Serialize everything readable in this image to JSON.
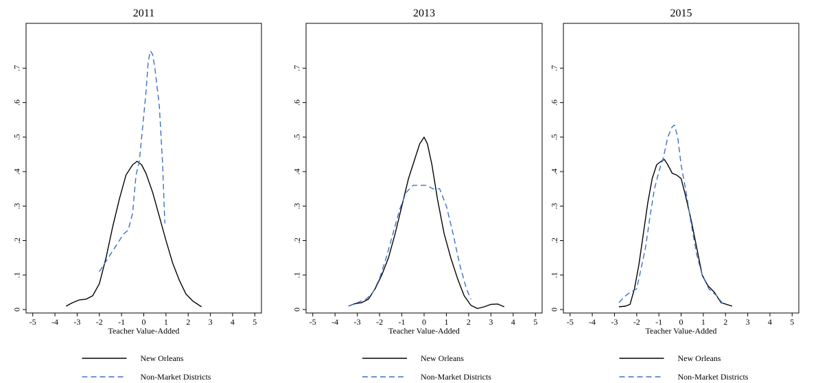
{
  "chart_data": [
    {
      "type": "line",
      "title": "2011",
      "xlabel": "Teacher Value-Added",
      "ylabel": "",
      "xlim": [
        -5.3,
        5.3
      ],
      "ylim": [
        -0.01,
        0.83
      ],
      "xticks": [
        -5,
        -4,
        -3,
        -2,
        -1,
        0,
        1,
        2,
        3,
        4,
        5
      ],
      "yticks": [
        0,
        0.1,
        0.2,
        0.3,
        0.4,
        0.5,
        0.6,
        0.7
      ],
      "ytick_labels": [
        "0",
        ".1",
        ".2",
        ".3",
        ".4",
        ".5",
        ".6",
        ".7"
      ],
      "grid": false,
      "legend": "below",
      "series": [
        {
          "name": "New Orleans",
          "style": "solid",
          "color": "#000000",
          "points": [
            [
              -3.5,
              0.01
            ],
            [
              -3.2,
              0.02
            ],
            [
              -2.9,
              0.028
            ],
            [
              -2.6,
              0.03
            ],
            [
              -2.3,
              0.04
            ],
            [
              -2.0,
              0.075
            ],
            [
              -1.7,
              0.15
            ],
            [
              -1.4,
              0.24
            ],
            [
              -1.1,
              0.32
            ],
            [
              -0.8,
              0.39
            ],
            [
              -0.5,
              0.42
            ],
            [
              -0.3,
              0.43
            ],
            [
              -0.1,
              0.42
            ],
            [
              0.1,
              0.395
            ],
            [
              0.4,
              0.34
            ],
            [
              0.7,
              0.27
            ],
            [
              1.0,
              0.2
            ],
            [
              1.3,
              0.135
            ],
            [
              1.6,
              0.085
            ],
            [
              1.9,
              0.045
            ],
            [
              2.2,
              0.025
            ],
            [
              2.6,
              0.008
            ]
          ]
        },
        {
          "name": "Non-Market Districts",
          "style": "dashed",
          "color": "#3a6fc7",
          "points": [
            [
              -2.0,
              0.11
            ],
            [
              -1.7,
              0.14
            ],
            [
              -1.4,
              0.17
            ],
            [
              -1.1,
              0.2
            ],
            [
              -0.9,
              0.22
            ],
            [
              -0.7,
              0.23
            ],
            [
              -0.5,
              0.28
            ],
            [
              -0.35,
              0.39
            ],
            [
              -0.2,
              0.43
            ],
            [
              -0.05,
              0.53
            ],
            [
              0.1,
              0.63
            ],
            [
              0.2,
              0.72
            ],
            [
              0.3,
              0.75
            ],
            [
              0.4,
              0.74
            ],
            [
              0.5,
              0.7
            ],
            [
              0.7,
              0.59
            ],
            [
              0.85,
              0.42
            ],
            [
              0.95,
              0.25
            ]
          ]
        }
      ]
    },
    {
      "type": "line",
      "title": "2013",
      "xlabel": "Teacher Value-Added",
      "ylabel": "",
      "xlim": [
        -5.3,
        5.3
      ],
      "ylim": [
        -0.01,
        0.83
      ],
      "xticks": [
        -5,
        -4,
        -3,
        -2,
        -1,
        0,
        1,
        2,
        3,
        4,
        5
      ],
      "yticks": [
        0,
        0.1,
        0.2,
        0.3,
        0.4,
        0.5,
        0.6,
        0.7
      ],
      "ytick_labels": [
        "0",
        ".1",
        ".2",
        ".3",
        ".4",
        ".5",
        ".6",
        ".7"
      ],
      "grid": false,
      "legend": "below",
      "series": [
        {
          "name": "New Orleans",
          "style": "solid",
          "color": "#000000",
          "points": [
            [
              -3.4,
              0.01
            ],
            [
              -3.1,
              0.017
            ],
            [
              -2.8,
              0.02
            ],
            [
              -2.5,
              0.03
            ],
            [
              -2.2,
              0.06
            ],
            [
              -1.9,
              0.1
            ],
            [
              -1.6,
              0.15
            ],
            [
              -1.3,
              0.22
            ],
            [
              -1.0,
              0.3
            ],
            [
              -0.7,
              0.38
            ],
            [
              -0.4,
              0.44
            ],
            [
              -0.2,
              0.48
            ],
            [
              0.0,
              0.5
            ],
            [
              0.15,
              0.48
            ],
            [
              0.35,
              0.42
            ],
            [
              0.6,
              0.32
            ],
            [
              0.9,
              0.22
            ],
            [
              1.2,
              0.15
            ],
            [
              1.5,
              0.09
            ],
            [
              1.8,
              0.04
            ],
            [
              2.1,
              0.012
            ],
            [
              2.4,
              0.003
            ],
            [
              2.7,
              0.008
            ],
            [
              3.0,
              0.015
            ],
            [
              3.3,
              0.016
            ],
            [
              3.6,
              0.008
            ]
          ]
        },
        {
          "name": "Non-Market Districts",
          "style": "dashed",
          "color": "#3a6fc7",
          "points": [
            [
              -3.4,
              0.01
            ],
            [
              -3.0,
              0.02
            ],
            [
              -2.6,
              0.03
            ],
            [
              -2.3,
              0.05
            ],
            [
              -2.0,
              0.09
            ],
            [
              -1.7,
              0.15
            ],
            [
              -1.4,
              0.22
            ],
            [
              -1.1,
              0.29
            ],
            [
              -0.8,
              0.34
            ],
            [
              -0.5,
              0.36
            ],
            [
              -0.2,
              0.36
            ],
            [
              0.1,
              0.36
            ],
            [
              0.4,
              0.35
            ],
            [
              0.7,
              0.35
            ],
            [
              1.0,
              0.3
            ],
            [
              1.3,
              0.22
            ],
            [
              1.6,
              0.13
            ],
            [
              1.9,
              0.06
            ],
            [
              2.1,
              0.03
            ]
          ]
        }
      ]
    },
    {
      "type": "line",
      "title": "2015",
      "xlabel": "Teacher Value-Added",
      "ylabel": "",
      "xlim": [
        -5.3,
        5.3
      ],
      "ylim": [
        -0.01,
        0.83
      ],
      "xticks": [
        -5,
        -4,
        -3,
        -2,
        -1,
        0,
        1,
        2,
        3,
        4,
        5
      ],
      "yticks": [
        0,
        0.1,
        0.2,
        0.3,
        0.4,
        0.5,
        0.6,
        0.7
      ],
      "ytick_labels": [
        "0",
        ".1",
        ".2",
        ".3",
        ".4",
        ".5",
        ".6",
        ".7"
      ],
      "grid": false,
      "legend": "below",
      "series": [
        {
          "name": "New Orleans",
          "style": "solid",
          "color": "#000000",
          "points": [
            [
              -2.8,
              0.008
            ],
            [
              -2.5,
              0.01
            ],
            [
              -2.3,
              0.015
            ],
            [
              -2.1,
              0.06
            ],
            [
              -1.9,
              0.13
            ],
            [
              -1.7,
              0.22
            ],
            [
              -1.5,
              0.31
            ],
            [
              -1.3,
              0.38
            ],
            [
              -1.1,
              0.42
            ],
            [
              -0.9,
              0.43
            ],
            [
              -0.75,
              0.435
            ],
            [
              -0.6,
              0.42
            ],
            [
              -0.4,
              0.395
            ],
            [
              -0.2,
              0.39
            ],
            [
              0.0,
              0.38
            ],
            [
              0.2,
              0.33
            ],
            [
              0.45,
              0.26
            ],
            [
              0.7,
              0.18
            ],
            [
              0.95,
              0.1
            ],
            [
              1.2,
              0.07
            ],
            [
              1.5,
              0.05
            ],
            [
              1.8,
              0.02
            ],
            [
              2.3,
              0.01
            ]
          ]
        },
        {
          "name": "Non-Market Districts",
          "style": "dashed",
          "color": "#3a6fc7",
          "points": [
            [
              -2.8,
              0.02
            ],
            [
              -2.5,
              0.04
            ],
            [
              -2.3,
              0.05
            ],
            [
              -2.0,
              0.06
            ],
            [
              -1.8,
              0.12
            ],
            [
              -1.6,
              0.18
            ],
            [
              -1.4,
              0.27
            ],
            [
              -1.2,
              0.35
            ],
            [
              -1.0,
              0.4
            ],
            [
              -0.8,
              0.44
            ],
            [
              -0.6,
              0.5
            ],
            [
              -0.4,
              0.53
            ],
            [
              -0.3,
              0.535
            ],
            [
              -0.15,
              0.5
            ],
            [
              0.0,
              0.42
            ],
            [
              0.2,
              0.35
            ],
            [
              0.45,
              0.25
            ],
            [
              0.7,
              0.16
            ],
            [
              0.95,
              0.1
            ],
            [
              1.25,
              0.06
            ],
            [
              1.6,
              0.04
            ],
            [
              1.9,
              0.015
            ]
          ]
        }
      ]
    }
  ]
}
